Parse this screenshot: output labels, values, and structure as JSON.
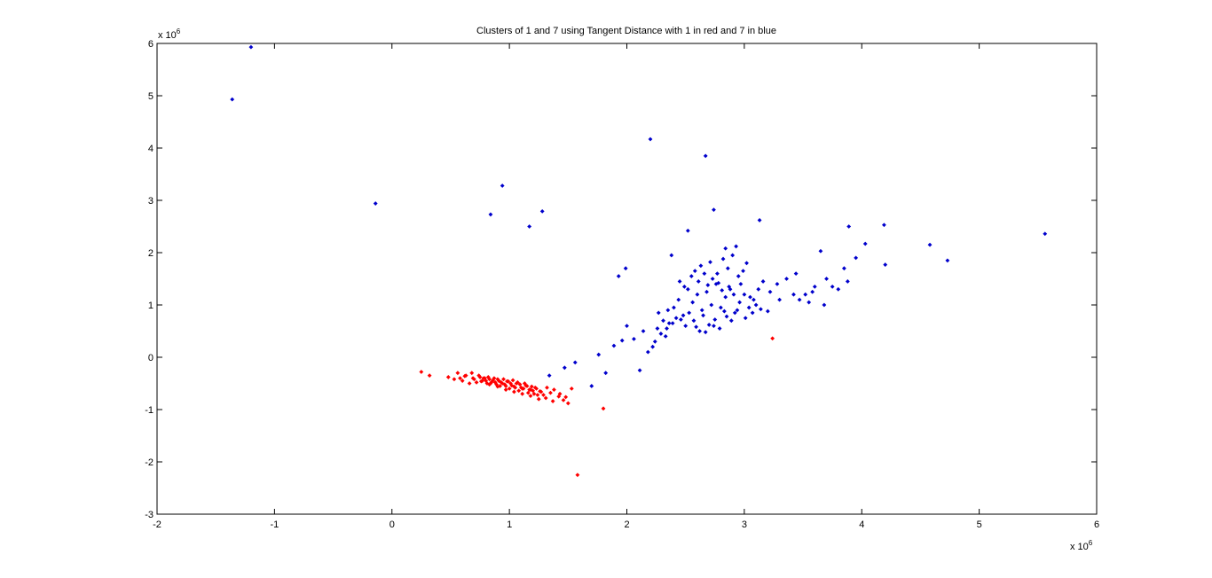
{
  "chart_data": {
    "type": "scatter",
    "title": "Clusters of 1 and 7 using Tangent Distance with 1 in red and 7 in blue",
    "xlabel": "",
    "ylabel": "",
    "xlim": [
      -2,
      6
    ],
    "ylim": [
      -3,
      6
    ],
    "xticks": [
      -2,
      -1,
      0,
      1,
      2,
      3,
      4,
      5,
      6
    ],
    "yticks": [
      -3,
      -2,
      -1,
      0,
      1,
      2,
      3,
      4,
      5,
      6
    ],
    "x_multiplier": {
      "base": "x 10",
      "exp": "6"
    },
    "y_multiplier": {
      "base": "x 10",
      "exp": "6"
    },
    "grid": false,
    "colors": {
      "red": "#ff0000",
      "blue": "#0000cc"
    },
    "series": [
      {
        "color": "#0000cc",
        "x": [
          -1.2,
          -1.36,
          -0.14,
          0.84,
          0.94,
          1.17,
          1.28,
          2.2,
          2.67,
          2.74,
          1.34,
          1.47,
          1.56,
          1.7,
          1.76,
          1.82,
          1.89,
          1.96,
          2.0,
          2.06,
          2.11,
          2.14,
          2.22,
          2.27,
          2.31,
          2.35,
          2.4,
          2.44,
          2.48,
          2.52,
          2.56,
          2.6,
          2.64,
          2.68,
          2.72,
          2.76,
          2.8,
          2.84,
          2.88,
          2.92,
          2.96,
          3.0,
          3.04,
          3.08,
          3.12,
          3.16,
          3.22,
          3.28,
          3.36,
          3.44,
          3.52,
          3.6,
          3.7,
          3.8,
          3.88,
          4.03,
          4.19,
          4.2,
          4.58,
          4.73,
          5.56,
          3.89,
          3.65,
          3.13,
          2.52,
          2.84,
          2.93,
          1.99,
          1.93,
          2.38,
          2.58,
          2.63,
          2.71,
          2.77,
          2.82,
          2.86,
          2.9,
          2.95,
          2.99,
          3.02,
          2.45,
          2.49,
          2.55,
          2.61,
          2.66,
          2.69,
          2.73,
          2.78,
          2.81,
          2.87,
          2.91,
          2.97,
          3.05,
          3.1,
          2.36,
          2.42,
          2.5,
          2.57,
          2.62,
          2.65,
          2.7,
          2.75,
          2.79,
          2.83,
          2.89,
          2.94,
          3.01,
          3.07,
          2.26,
          2.33,
          2.39,
          2.46,
          2.53,
          2.59,
          2.67,
          2.74,
          2.85,
          3.14,
          3.2,
          3.3,
          3.42,
          3.55,
          3.68,
          2.18,
          2.24,
          2.29,
          2.34,
          3.47,
          3.58,
          3.75,
          3.85,
          3.95
        ],
        "y": [
          5.93,
          4.93,
          2.94,
          2.73,
          3.28,
          2.5,
          2.79,
          4.17,
          3.85,
          2.82,
          -0.35,
          -0.2,
          -0.1,
          -0.55,
          0.05,
          -0.3,
          0.22,
          0.32,
          0.6,
          0.35,
          -0.25,
          0.5,
          0.2,
          0.85,
          0.7,
          0.9,
          0.95,
          1.1,
          0.8,
          1.3,
          1.05,
          1.2,
          0.9,
          1.25,
          1.0,
          1.4,
          0.95,
          1.15,
          1.3,
          0.85,
          1.05,
          1.2,
          0.95,
          1.1,
          1.3,
          1.45,
          1.25,
          1.4,
          1.5,
          1.6,
          1.2,
          1.35,
          1.5,
          1.3,
          1.45,
          2.17,
          2.53,
          1.77,
          2.15,
          1.85,
          2.36,
          2.5,
          2.03,
          2.62,
          2.42,
          2.08,
          2.12,
          1.7,
          1.55,
          1.95,
          1.65,
          1.75,
          1.82,
          1.6,
          1.88,
          1.7,
          1.95,
          1.55,
          1.65,
          1.8,
          1.45,
          1.35,
          1.55,
          1.45,
          1.6,
          1.38,
          1.5,
          1.42,
          1.28,
          1.35,
          1.2,
          1.4,
          1.15,
          1.0,
          0.65,
          0.75,
          0.6,
          0.7,
          0.5,
          0.8,
          0.62,
          0.72,
          0.55,
          0.88,
          0.7,
          0.9,
          0.75,
          0.85,
          0.55,
          0.4,
          0.65,
          0.72,
          0.85,
          0.58,
          0.48,
          0.6,
          0.78,
          0.92,
          0.88,
          1.1,
          1.2,
          1.05,
          1.0,
          0.1,
          0.3,
          0.45,
          0.55,
          1.1,
          1.25,
          1.35,
          1.7,
          1.9
        ]
      },
      {
        "color": "#ff0000",
        "x": [
          0.25,
          0.32,
          0.48,
          0.53,
          0.56,
          0.6,
          0.63,
          0.66,
          0.69,
          0.72,
          0.75,
          0.77,
          0.79,
          0.81,
          0.83,
          0.85,
          0.87,
          0.89,
          0.91,
          0.93,
          0.95,
          0.97,
          0.99,
          1.01,
          1.03,
          1.05,
          1.07,
          1.09,
          1.11,
          1.13,
          1.15,
          1.17,
          1.19,
          1.21,
          1.23,
          1.26,
          1.29,
          1.32,
          1.35,
          1.38,
          1.42,
          1.46,
          1.5,
          1.53,
          1.58,
          1.8,
          3.24,
          0.74,
          0.78,
          0.82,
          0.86,
          0.9,
          0.94,
          0.98,
          1.02,
          1.06,
          1.1,
          1.14,
          1.18,
          1.22,
          1.27,
          0.8,
          0.84,
          0.88,
          0.92,
          0.96,
          1.0,
          1.04,
          1.08,
          1.12,
          1.16,
          1.2,
          1.24,
          0.7,
          0.76,
          0.83,
          0.9,
          0.97,
          1.04,
          1.11,
          1.18,
          1.25,
          1.31,
          1.37,
          0.62,
          0.68,
          1.43,
          1.48,
          0.58
        ],
        "y": [
          -0.28,
          -0.35,
          -0.38,
          -0.42,
          -0.3,
          -0.45,
          -0.35,
          -0.5,
          -0.4,
          -0.48,
          -0.38,
          -0.45,
          -0.4,
          -0.5,
          -0.42,
          -0.47,
          -0.4,
          -0.52,
          -0.45,
          -0.48,
          -0.42,
          -0.55,
          -0.46,
          -0.5,
          -0.44,
          -0.58,
          -0.48,
          -0.52,
          -0.6,
          -0.5,
          -0.55,
          -0.62,
          -0.56,
          -0.7,
          -0.6,
          -0.65,
          -0.72,
          -0.58,
          -0.68,
          -0.62,
          -0.75,
          -0.82,
          -0.88,
          -0.6,
          -2.25,
          -0.98,
          0.36,
          -0.35,
          -0.4,
          -0.38,
          -0.44,
          -0.42,
          -0.5,
          -0.46,
          -0.54,
          -0.5,
          -0.58,
          -0.54,
          -0.62,
          -0.58,
          -0.66,
          -0.45,
          -0.5,
          -0.48,
          -0.55,
          -0.52,
          -0.6,
          -0.56,
          -0.64,
          -0.6,
          -0.68,
          -0.64,
          -0.72,
          -0.42,
          -0.46,
          -0.52,
          -0.56,
          -0.62,
          -0.66,
          -0.7,
          -0.74,
          -0.8,
          -0.78,
          -0.84,
          -0.36,
          -0.3,
          -0.7,
          -0.76,
          -0.4
        ]
      }
    ]
  }
}
